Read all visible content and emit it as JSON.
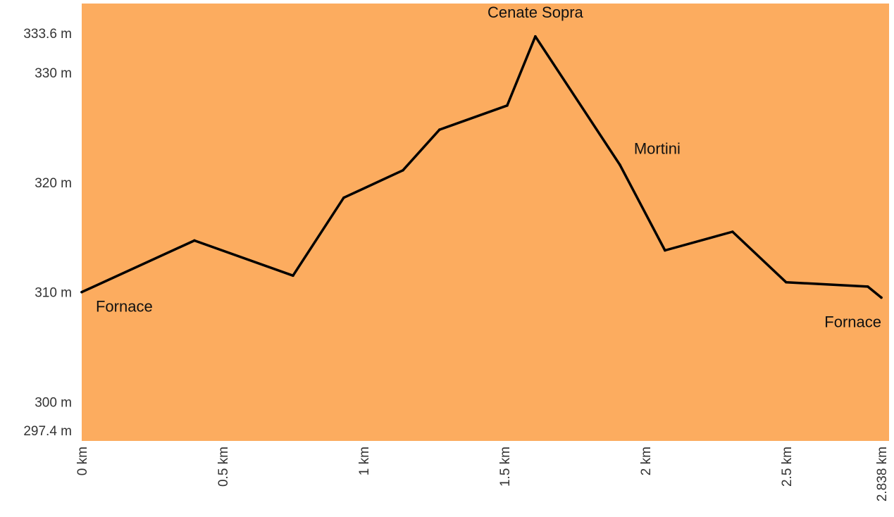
{
  "chart_data": {
    "type": "area",
    "title": "",
    "xlabel": "",
    "ylabel": "",
    "xlim": [
      0,
      2.838
    ],
    "ylim": [
      297.4,
      333.6
    ],
    "grid": false,
    "legend": "none",
    "colors": {
      "fill": "#FCAC5F",
      "line": "#000000"
    },
    "x_ticks": [
      {
        "value": 0,
        "label": "0 km"
      },
      {
        "value": 0.5,
        "label": "0.5 km"
      },
      {
        "value": 1,
        "label": "1 km"
      },
      {
        "value": 1.5,
        "label": "1.5 km"
      },
      {
        "value": 2,
        "label": "2 km"
      },
      {
        "value": 2.5,
        "label": "2.5 km"
      },
      {
        "value": 2.838,
        "label": "2.838 km"
      }
    ],
    "y_ticks": [
      {
        "value": 297.4,
        "label": "297.4 m"
      },
      {
        "value": 300,
        "label": "300 m"
      },
      {
        "value": 310,
        "label": "310 m"
      },
      {
        "value": 320,
        "label": "320 m"
      },
      {
        "value": 330,
        "label": "330 m"
      },
      {
        "value": 333.6,
        "label": "333.6 m"
      }
    ],
    "series": [
      {
        "x": [
          0,
          0.4,
          0.75,
          0.93,
          1.14,
          1.27,
          1.51,
          1.61,
          1.91,
          2.07,
          2.31,
          2.5,
          2.79,
          2.838
        ],
        "values": [
          310.0,
          314.7,
          311.5,
          318.6,
          321.1,
          324.8,
          327.0,
          333.3,
          321.6,
          313.8,
          315.5,
          310.9,
          310.5,
          309.5
        ]
      }
    ],
    "annotations": [
      {
        "text": "Fornace",
        "x": 0.05,
        "y": 308.2,
        "anchor": "start"
      },
      {
        "text": "Cenate Sopra",
        "x": 1.61,
        "y": 335.0,
        "anchor": "middle"
      },
      {
        "text": "Mortini",
        "x": 1.96,
        "y": 322.6,
        "anchor": "start"
      },
      {
        "text": "Fornace",
        "x": 2.838,
        "y": 306.8,
        "anchor": "end"
      }
    ]
  }
}
